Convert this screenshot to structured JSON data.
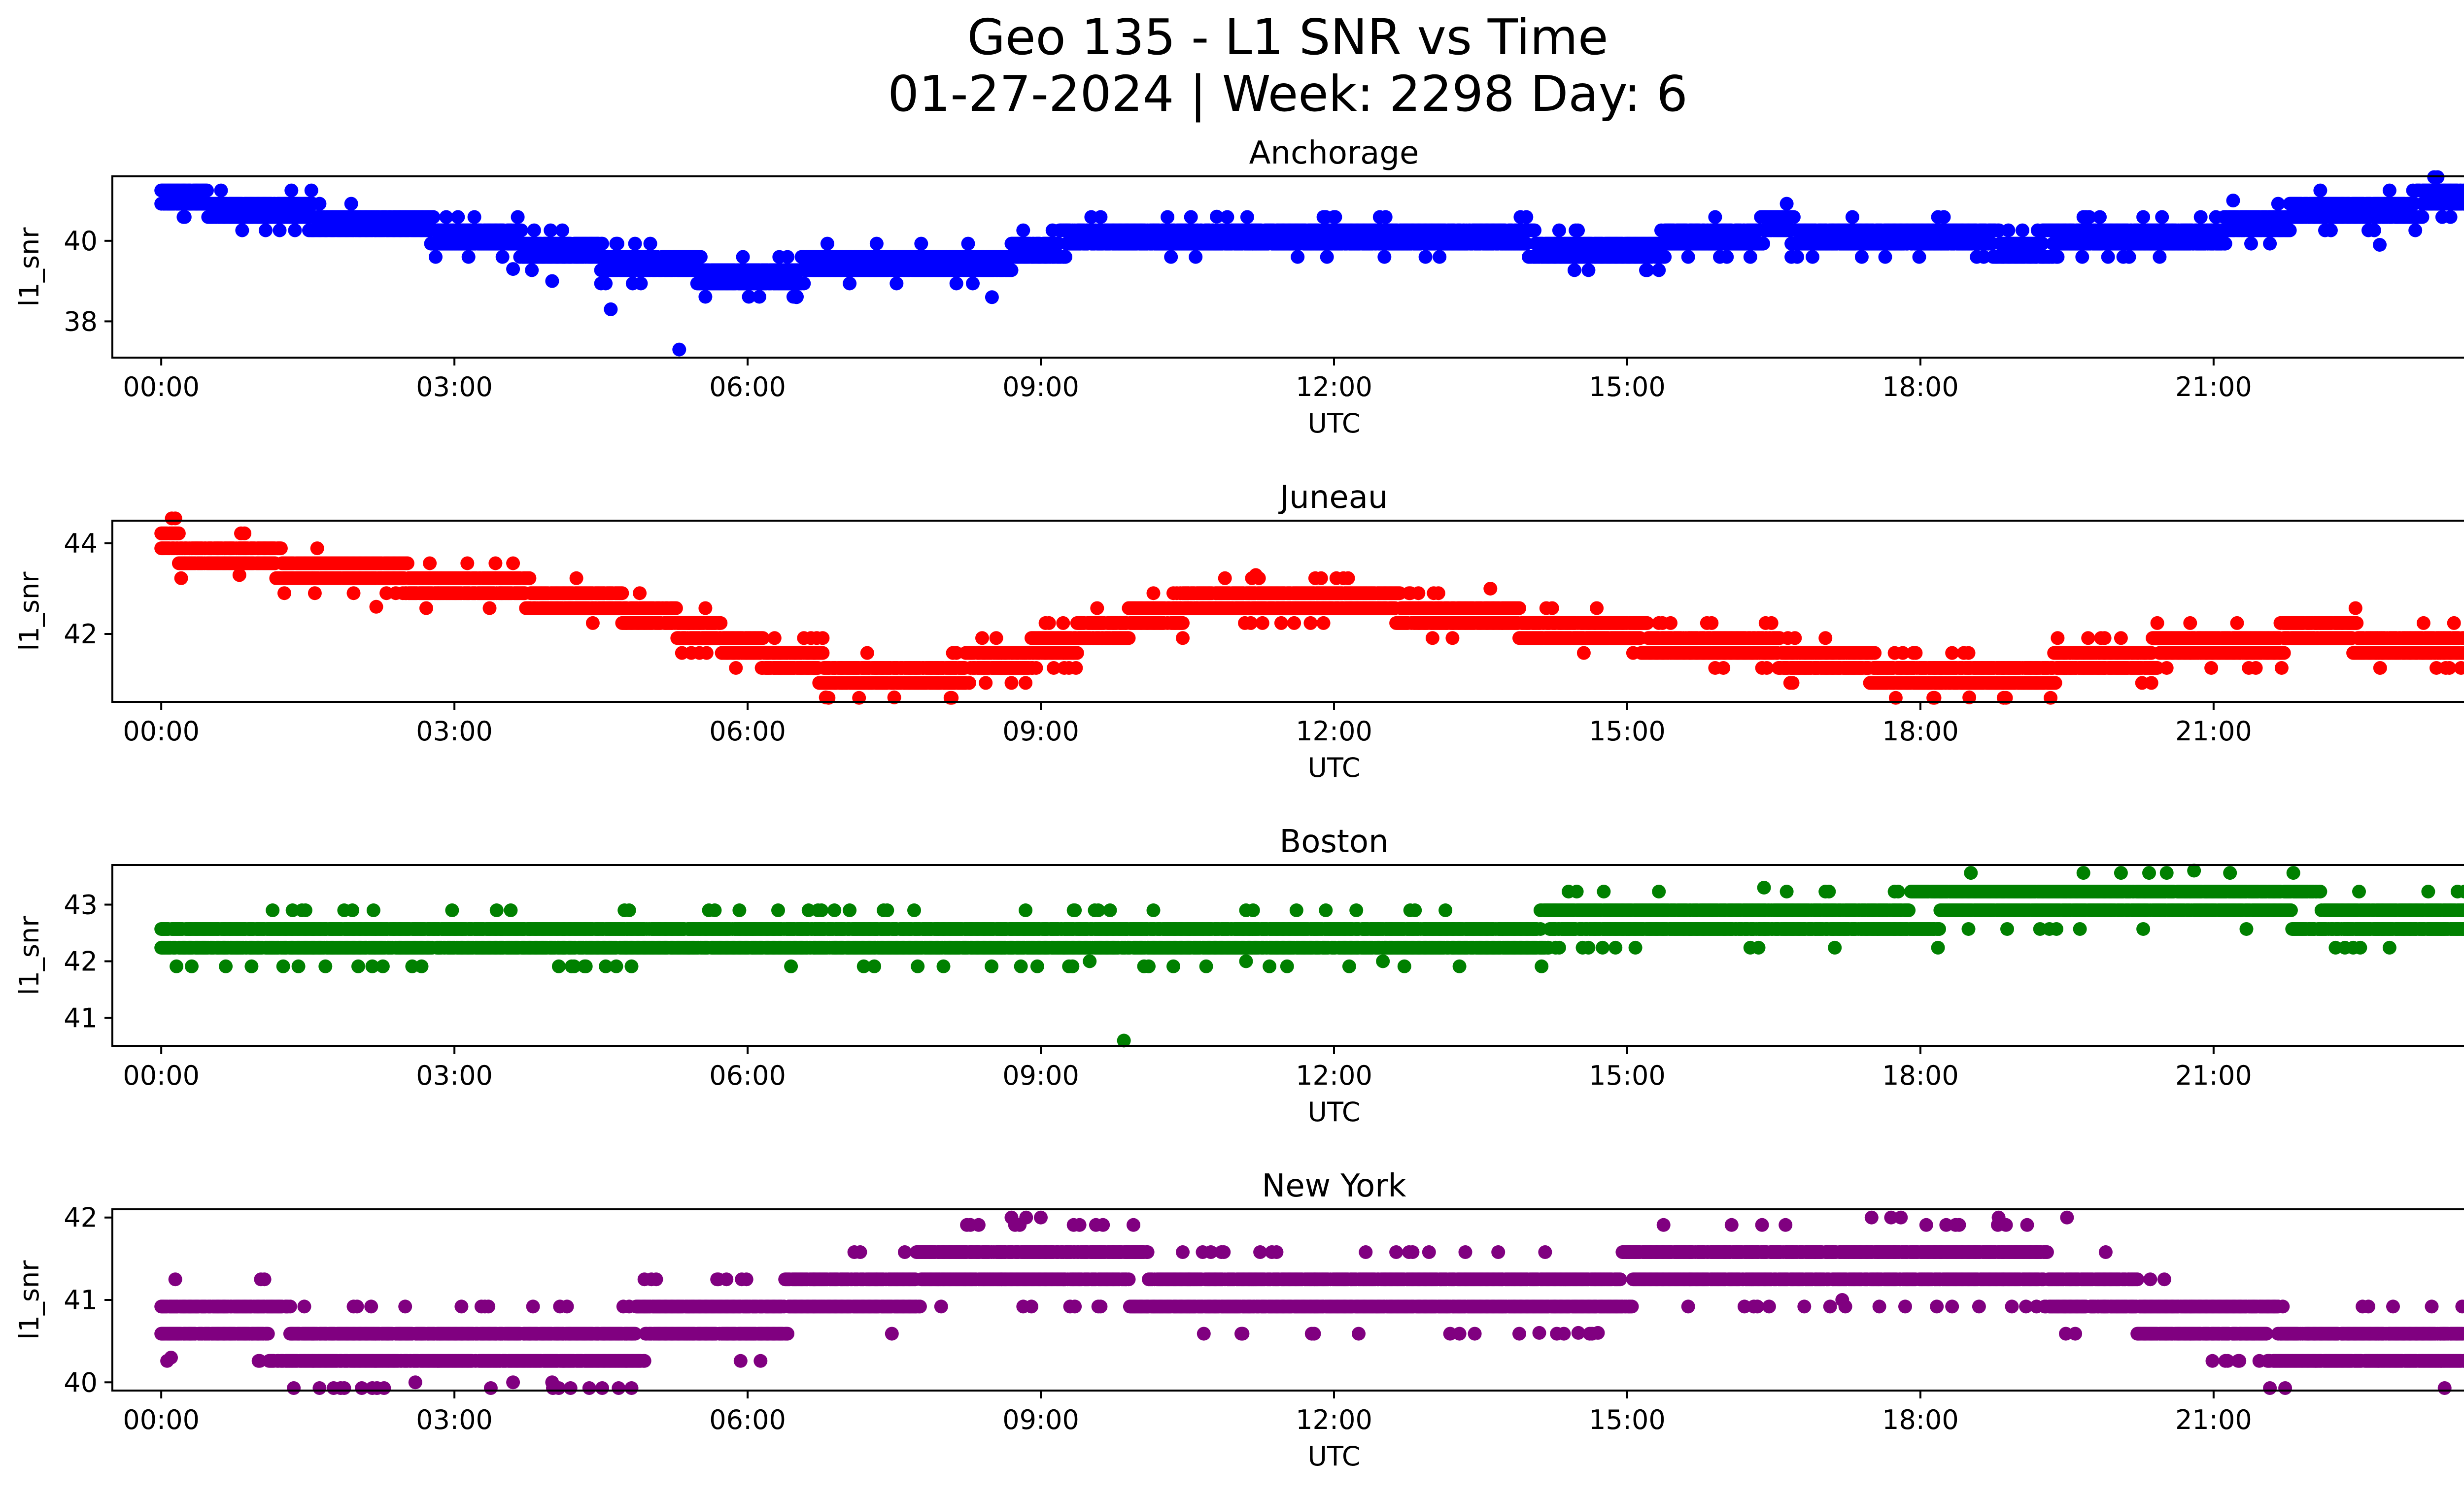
{
  "figure": {
    "title_line1": "Geo 135 - L1 SNR vs Time",
    "title_line2": "01-27-2024 | Week: 2298 Day: 6"
  },
  "chart_data": [
    {
      "type": "scatter",
      "title": "Anchorage",
      "xlabel": "UTC",
      "ylabel": "l1_snr",
      "color": "#0000ff",
      "xlim": [
        -0.5,
        24.5
      ],
      "ylim": [
        37.1,
        41.6
      ],
      "x_ticks": [
        "00:00",
        "03:00",
        "06:00",
        "09:00",
        "12:00",
        "15:00",
        "18:00",
        "21:00",
        "00:00"
      ],
      "x_tick_hours": [
        0,
        3,
        6,
        9,
        12,
        15,
        18,
        21,
        24
      ],
      "y_ticks": [
        38,
        40
      ],
      "trend_hours": [
        0,
        0.5,
        1.5,
        3,
        4.5,
        6,
        7,
        8.5,
        9,
        10.5,
        12,
        13.5,
        15,
        16.5,
        17.5,
        19,
        20,
        21,
        22,
        23,
        24
      ],
      "trend_snr": [
        41.2,
        40.9,
        40.6,
        40.2,
        39.6,
        39.1,
        39.4,
        39.4,
        39.9,
        40.1,
        40.0,
        40.0,
        39.8,
        40.3,
        40.1,
        39.9,
        40.0,
        40.2,
        40.7,
        40.9,
        41.1
      ],
      "outliers": [
        [
          4.6,
          38.3
        ],
        [
          5.3,
          37.3
        ],
        [
          4.0,
          39.0
        ],
        [
          6.5,
          38.6
        ],
        [
          8.5,
          38.6
        ],
        [
          10.8,
          40.6
        ],
        [
          21.2,
          41.0
        ],
        [
          22.7,
          39.9
        ],
        [
          3.6,
          39.3
        ]
      ]
    },
    {
      "type": "scatter",
      "title": "Juneau",
      "xlabel": "UTC",
      "ylabel": "l1_snr",
      "color": "#ff0000",
      "xlim": [
        -0.5,
        24.5
      ],
      "ylim": [
        40.5,
        44.5
      ],
      "x_ticks": [
        "00:00",
        "03:00",
        "06:00",
        "09:00",
        "12:00",
        "15:00",
        "18:00",
        "21:00",
        "00:00"
      ],
      "x_tick_hours": [
        0,
        3,
        6,
        9,
        12,
        15,
        18,
        21,
        24
      ],
      "y_ticks": [
        42,
        44
      ],
      "trend_hours": [
        0,
        0.5,
        1.5,
        3,
        4.5,
        5.5,
        6.5,
        7.5,
        8.5,
        9.5,
        10.5,
        11.5,
        12.5,
        13.5,
        14.5,
        16,
        17,
        18,
        19,
        20,
        21,
        22,
        23,
        24
      ],
      "trend_snr": [
        44.0,
        43.7,
        43.5,
        43.1,
        42.7,
        42.1,
        41.3,
        41.1,
        41.3,
        42.0,
        42.6,
        42.8,
        42.6,
        42.4,
        42.0,
        41.8,
        41.4,
        41.1,
        41.1,
        41.5,
        41.7,
        42.0,
        41.8,
        41.8
      ],
      "outliers": [
        [
          6.8,
          40.6
        ],
        [
          7.5,
          40.6
        ],
        [
          18.5,
          40.6
        ],
        [
          11.2,
          43.3
        ],
        [
          13.6,
          43.0
        ],
        [
          2.2,
          42.6
        ],
        [
          0.8,
          43.3
        ]
      ]
    },
    {
      "type": "scatter",
      "title": "Boston",
      "xlabel": "UTC",
      "ylabel": "l1_snr",
      "color": "#008000",
      "xlim": [
        -0.5,
        24.5
      ],
      "ylim": [
        40.5,
        43.7
      ],
      "x_ticks": [
        "00:00",
        "03:00",
        "06:00",
        "09:00",
        "12:00",
        "15:00",
        "18:00",
        "21:00",
        "00:00"
      ],
      "x_tick_hours": [
        0,
        3,
        6,
        9,
        12,
        15,
        18,
        21,
        24
      ],
      "y_ticks": [
        41,
        42,
        43
      ],
      "trend_hours": [
        0,
        2,
        4,
        6,
        8,
        10,
        12,
        14,
        16,
        18,
        20,
        22,
        24
      ],
      "trend_snr": [
        42.45,
        42.4,
        42.45,
        42.5,
        42.55,
        42.5,
        42.5,
        42.55,
        42.8,
        42.9,
        42.95,
        42.9,
        42.8
      ],
      "outliers": [
        [
          9.85,
          40.6
        ],
        [
          20.8,
          43.6
        ],
        [
          9.5,
          42.0
        ],
        [
          11.1,
          42.0
        ],
        [
          12.5,
          42.0
        ],
        [
          16.4,
          43.3
        ],
        [
          23.9,
          42.3
        ]
      ]
    },
    {
      "type": "scatter",
      "title": "New York",
      "xlabel": "UTC",
      "ylabel": "l1_snr",
      "color": "#800080",
      "xlim": [
        -0.5,
        24.5
      ],
      "ylim": [
        39.9,
        42.1
      ],
      "x_ticks": [
        "00:00",
        "03:00",
        "06:00",
        "09:00",
        "12:00",
        "15:00",
        "18:00",
        "21:00",
        "00:00"
      ],
      "x_tick_hours": [
        0,
        3,
        6,
        9,
        12,
        15,
        18,
        21,
        24
      ],
      "y_ticks": [
        40,
        41,
        42
      ],
      "trend_hours": [
        0,
        1,
        2,
        3,
        4,
        5,
        6,
        7,
        8,
        9,
        10,
        11,
        12,
        13,
        14,
        15,
        16,
        17,
        18,
        19,
        20,
        21,
        22,
        23,
        24
      ],
      "trend_snr": [
        40.7,
        40.6,
        40.55,
        40.5,
        40.5,
        40.6,
        40.8,
        41.1,
        41.3,
        41.3,
        41.25,
        41.2,
        41.15,
        41.15,
        41.15,
        41.25,
        41.35,
        41.4,
        41.4,
        41.35,
        41.0,
        40.65,
        40.55,
        40.55,
        40.5
      ],
      "outliers": [
        [
          2.6,
          40.0
        ],
        [
          3.6,
          40.0
        ],
        [
          4.0,
          40.0
        ],
        [
          8.7,
          42.0
        ],
        [
          8.85,
          42.0
        ],
        [
          9.0,
          42.0
        ],
        [
          17.5,
          42.0
        ],
        [
          17.7,
          42.0
        ],
        [
          17.8,
          42.0
        ],
        [
          18.8,
          42.0
        ],
        [
          19.5,
          42.0
        ],
        [
          14.1,
          40.6
        ],
        [
          14.5,
          40.6
        ],
        [
          14.7,
          40.6
        ],
        [
          0.1,
          40.3
        ],
        [
          17.2,
          41.0
        ]
      ]
    }
  ]
}
